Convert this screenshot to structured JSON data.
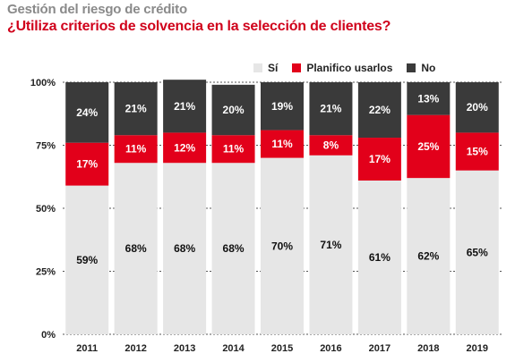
{
  "title": "Gestión del riesgo de crédito",
  "subtitle": "¿Utiliza criterios de solvencia en la selección de clientes?",
  "chart_data": {
    "type": "bar",
    "stacked": true,
    "categories": [
      "2011",
      "2012",
      "2013",
      "2014",
      "2015",
      "2016",
      "2017",
      "2018",
      "2019"
    ],
    "series": [
      {
        "name": "Sí",
        "color": "#e6e6e6",
        "label_color": "#111111",
        "values": [
          59,
          68,
          68,
          68,
          70,
          71,
          61,
          62,
          65
        ]
      },
      {
        "name": "Planifico usarlos",
        "color": "#e2001a",
        "label_color": "#ffffff",
        "values": [
          17,
          11,
          12,
          11,
          11,
          8,
          17,
          25,
          15
        ]
      },
      {
        "name": "No",
        "color": "#3a3a3a",
        "label_color": "#ffffff",
        "values": [
          24,
          21,
          21,
          20,
          19,
          21,
          22,
          13,
          20
        ]
      }
    ],
    "value_suffix": "%",
    "yticks": [
      "0%",
      "25%",
      "50%",
      "75%",
      "100%"
    ],
    "ylim": [
      0,
      100
    ],
    "legend_position": "top-right"
  }
}
